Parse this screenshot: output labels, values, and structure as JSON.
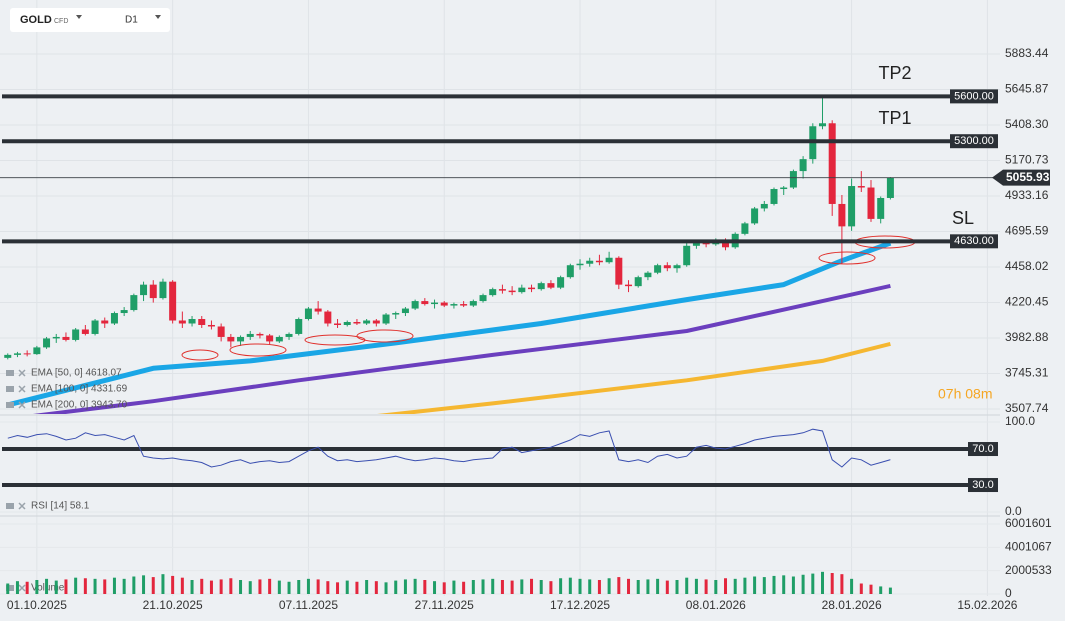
{
  "chart_data": [
    {
      "type": "candlestick",
      "symbol": "GOLD",
      "instrument": "CFD",
      "timeframe": "D1",
      "countdown": "07h 08m",
      "up_color": "#1f9e67",
      "down_color": "#e3263d",
      "xlim": [
        -0.8,
        102.3
      ],
      "xticks": [
        {
          "value": 3,
          "label": "01.10.2025"
        },
        {
          "value": 17,
          "label": "21.10.2025"
        },
        {
          "value": 31,
          "label": "07.11.2025"
        },
        {
          "value": 45,
          "label": "27.11.2025"
        },
        {
          "value": 59,
          "label": "17.12.2025"
        },
        {
          "value": 73,
          "label": "08.01.2026"
        },
        {
          "value": 87,
          "label": "28.01.2026"
        },
        {
          "value": 101,
          "label": "15.02.2026"
        }
      ],
      "ylim": [
        3474.3,
        6245.0
      ],
      "yticks": [
        3507.74,
        3745.31,
        3982.88,
        4220.45,
        4458.02,
        4695.59,
        4933.16,
        5170.73,
        {
          "value": 5408.3,
          "label": "5408.30"
        },
        5645.87,
        5883.44
      ],
      "current_price": 5055.93,
      "levels": [
        {
          "name": "TP2",
          "value": 5600,
          "label": "5600.00"
        },
        {
          "name": "TP1",
          "value": 5300,
          "label": "5300.00"
        },
        {
          "name": "SL",
          "value": 4630,
          "label": "4630.00"
        }
      ],
      "candles": [
        [
          3850,
          3880,
          3840,
          3870
        ],
        [
          3870,
          3890,
          3855,
          3880
        ],
        [
          3880,
          3900,
          3860,
          3875
        ],
        [
          3875,
          3930,
          3870,
          3920
        ],
        [
          3920,
          3990,
          3910,
          3980
        ],
        [
          3980,
          4010,
          3950,
          3990
        ],
        [
          3990,
          4020,
          3960,
          3970
        ],
        [
          3970,
          4050,
          3960,
          4040
        ],
        [
          4040,
          4070,
          4000,
          4010
        ],
        [
          4010,
          4110,
          4000,
          4100
        ],
        [
          4100,
          4120,
          4050,
          4080
        ],
        [
          4080,
          4160,
          4070,
          4150
        ],
        [
          4150,
          4190,
          4130,
          4170
        ],
        [
          4170,
          4280,
          4160,
          4270
        ],
        [
          4270,
          4360,
          4230,
          4340
        ],
        [
          4340,
          4370,
          4220,
          4250
        ],
        [
          4250,
          4380,
          4240,
          4360
        ],
        [
          4360,
          4370,
          4080,
          4100
        ],
        [
          4100,
          4160,
          4050,
          4080
        ],
        [
          4080,
          4130,
          4060,
          4110
        ],
        [
          4110,
          4130,
          4050,
          4070
        ],
        [
          4070,
          4100,
          4040,
          4060
        ],
        [
          4060,
          4080,
          3960,
          3990
        ],
        [
          3990,
          4010,
          3920,
          3960
        ],
        [
          3960,
          4000,
          3930,
          3990
        ],
        [
          3990,
          4030,
          3970,
          4010
        ],
        [
          4010,
          4020,
          3980,
          4000
        ],
        [
          4000,
          4010,
          3940,
          3960
        ],
        [
          3960,
          4000,
          3950,
          3990
        ],
        [
          3990,
          4020,
          3970,
          4010
        ],
        [
          4010,
          4120,
          4000,
          4110
        ],
        [
          4110,
          4190,
          4100,
          4180
        ],
        [
          4180,
          4230,
          4140,
          4160
        ],
        [
          4160,
          4170,
          4060,
          4080
        ],
        [
          4080,
          4110,
          4050,
          4070
        ],
        [
          4070,
          4100,
          4060,
          4090
        ],
        [
          4090,
          4110,
          4070,
          4080
        ],
        [
          4080,
          4110,
          4070,
          4100
        ],
        [
          4100,
          4110,
          4060,
          4080
        ],
        [
          4080,
          4150,
          4070,
          4140
        ],
        [
          4140,
          4160,
          4110,
          4150
        ],
        [
          4150,
          4190,
          4130,
          4180
        ],
        [
          4180,
          4240,
          4170,
          4230
        ],
        [
          4230,
          4250,
          4200,
          4210
        ],
        [
          4210,
          4240,
          4180,
          4220
        ],
        [
          4220,
          4230,
          4190,
          4200
        ],
        [
          4200,
          4220,
          4180,
          4210
        ],
        [
          4210,
          4230,
          4190,
          4200
        ],
        [
          4200,
          4240,
          4190,
          4230
        ],
        [
          4230,
          4280,
          4220,
          4270
        ],
        [
          4270,
          4320,
          4260,
          4310
        ],
        [
          4310,
          4340,
          4280,
          4300
        ],
        [
          4300,
          4330,
          4270,
          4290
        ],
        [
          4290,
          4340,
          4280,
          4320
        ],
        [
          4320,
          4340,
          4290,
          4310
        ],
        [
          4310,
          4360,
          4300,
          4350
        ],
        [
          4350,
          4370,
          4310,
          4320
        ],
        [
          4320,
          4400,
          4310,
          4390
        ],
        [
          4390,
          4480,
          4380,
          4470
        ],
        [
          4470,
          4510,
          4440,
          4480
        ],
        [
          4480,
          4520,
          4460,
          4500
        ],
        [
          4500,
          4540,
          4470,
          4490
        ],
        [
          4490,
          4560,
          4480,
          4520
        ],
        [
          4520,
          4530,
          4310,
          4340
        ],
        [
          4340,
          4370,
          4290,
          4330
        ],
        [
          4330,
          4400,
          4320,
          4390
        ],
        [
          4390,
          4430,
          4370,
          4420
        ],
        [
          4420,
          4480,
          4410,
          4470
        ],
        [
          4470,
          4490,
          4430,
          4450
        ],
        [
          4450,
          4480,
          4420,
          4470
        ],
        [
          4470,
          4620,
          4460,
          4600
        ],
        [
          4600,
          4640,
          4580,
          4620
        ],
        [
          4620,
          4640,
          4590,
          4610
        ],
        [
          4610,
          4650,
          4600,
          4640
        ],
        [
          4640,
          4650,
          4570,
          4590
        ],
        [
          4590,
          4690,
          4580,
          4680
        ],
        [
          4680,
          4760,
          4670,
          4750
        ],
        [
          4750,
          4860,
          4740,
          4850
        ],
        [
          4850,
          4900,
          4830,
          4880
        ],
        [
          4880,
          4990,
          4870,
          4980
        ],
        [
          4980,
          5000,
          4940,
          4990
        ],
        [
          4990,
          5110,
          4980,
          5100
        ],
        [
          5100,
          5200,
          5050,
          5180
        ],
        [
          5180,
          5420,
          5150,
          5400
        ],
        [
          5400,
          5600,
          5380,
          5420
        ],
        [
          5420,
          5440,
          4800,
          4880
        ],
        [
          4880,
          4940,
          4480,
          4730
        ],
        [
          4730,
          5050,
          4700,
          5000
        ],
        [
          5000,
          5100,
          4960,
          4990
        ],
        [
          4990,
          5040,
          4760,
          4780
        ],
        [
          4780,
          4930,
          4750,
          4920
        ],
        [
          4920,
          5060,
          4910,
          5056
        ]
      ],
      "indicators": [
        {
          "name": "EMA [50, 0] 4618.07",
          "color": "#1aa6e6",
          "width": 5,
          "x": [
            0,
            15,
            25,
            40,
            55,
            70,
            80,
            86,
            91
          ],
          "values": [
            3535,
            3780,
            3830,
            3950,
            4080,
            4240,
            4340,
            4500,
            4618.07
          ]
        },
        {
          "name": "EMA [100, 0] 4331.69",
          "color": "#6b3fbe",
          "width": 4,
          "x": [
            0,
            15,
            30,
            50,
            70,
            84,
            91
          ],
          "values": [
            3440,
            3560,
            3700,
            3870,
            4030,
            4230,
            4331.69
          ]
        },
        {
          "name": "EMA [200, 0] 3943.70",
          "color": "#f5b731",
          "width": 4,
          "x": [
            38,
            50,
            70,
            84,
            91
          ],
          "values": [
            3460,
            3545,
            3700,
            3830,
            3943.7
          ]
        }
      ]
    },
    {
      "type": "line",
      "name": "RSI [14] 58.1",
      "color": "#3a4fb0",
      "ylim": [
        -3.3,
        107.8
      ],
      "yticks": [
        {
          "value": 100,
          "label": "100.0"
        },
        {
          "value": 0,
          "label": "0.0"
        }
      ],
      "levels": [
        {
          "value": 70,
          "label": "70.0"
        },
        {
          "value": 30,
          "label": "30.0"
        }
      ],
      "values": [
        82,
        85,
        83,
        86,
        87,
        84,
        80,
        82,
        88,
        85,
        86,
        83,
        80,
        85,
        62,
        60,
        59,
        60,
        58,
        57,
        55,
        50,
        52,
        56,
        58,
        54,
        56,
        57,
        55,
        56,
        62,
        68,
        72,
        62,
        57,
        58,
        56,
        57,
        58,
        60,
        62,
        59,
        57,
        58,
        60,
        59,
        57,
        56,
        58,
        59,
        60,
        70,
        72,
        66,
        68,
        70,
        72,
        76,
        80,
        86,
        84,
        88,
        90,
        58,
        56,
        58,
        55,
        62,
        64,
        60,
        62,
        72,
        74,
        71,
        70,
        73,
        76,
        80,
        82,
        84,
        85,
        86,
        88,
        92,
        90,
        58,
        50,
        60,
        58,
        52,
        55,
        58.1
      ]
    },
    {
      "type": "bar",
      "name": "Volume",
      "ylim": [
        0,
        6001601
      ],
      "yticks": [
        0,
        2000533,
        4001067,
        6001601
      ],
      "values": [
        900000,
        1100000,
        1050000,
        1200000,
        1300000,
        1150000,
        1250000,
        1400000,
        1350000,
        1300000,
        1250000,
        1400000,
        1300000,
        1500000,
        1600000,
        1450000,
        1700000,
        1550000,
        1400000,
        1200000,
        1300000,
        1150000,
        1250000,
        1350000,
        1200000,
        1100000,
        1250000,
        1300000,
        1150000,
        1050000,
        1200000,
        1300000,
        1250000,
        1100000,
        1000000,
        1150000,
        1050000,
        1200000,
        1100000,
        1000000,
        1150000,
        1250000,
        1300000,
        1200000,
        1100000,
        1000000,
        1150000,
        1050000,
        1200000,
        1250000,
        1300000,
        1200000,
        1150000,
        1250000,
        1300000,
        1200000,
        1100000,
        1350000,
        1400000,
        1300000,
        1250000,
        1200000,
        1350000,
        1450000,
        1300000,
        1200000,
        1250000,
        1300000,
        1150000,
        1200000,
        1400000,
        1300000,
        1250000,
        1200000,
        1350000,
        1300000,
        1400000,
        1500000,
        1450000,
        1550000,
        1600000,
        1500000,
        1650000,
        1750000,
        1900000,
        1800000,
        1700000,
        1300000,
        900000,
        800000,
        650000,
        550000
      ]
    }
  ]
}
